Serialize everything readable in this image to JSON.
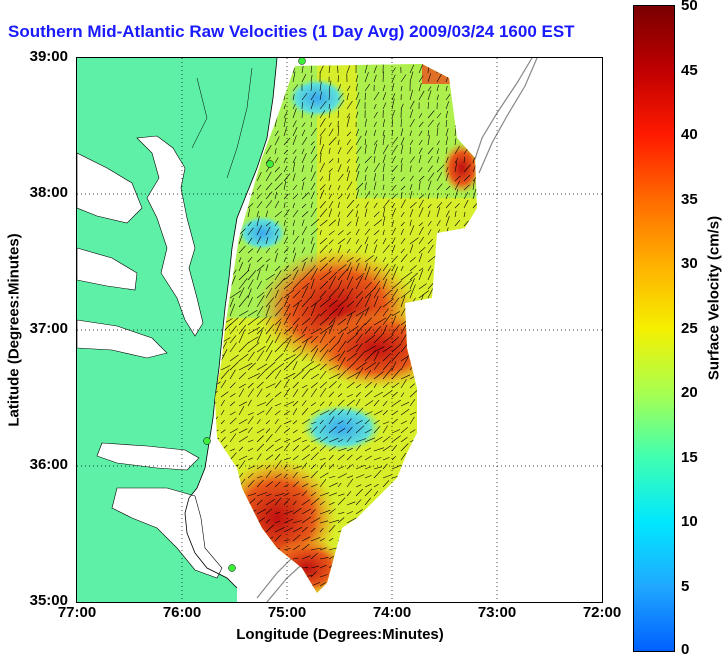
{
  "title": "Southern Mid-Atlantic Raw Velocities (1 Day Avg) 2009/03/24 1600 EST",
  "axes": {
    "xlabel": "Longitude (Degrees:Minutes)",
    "ylabel": "Latitude (Degrees:Minutes)",
    "x_ticks": [
      "77:00",
      "76:00",
      "75:00",
      "74:00",
      "73:00",
      "72:00"
    ],
    "y_ticks": [
      "39:00",
      "38:00",
      "37:00",
      "36:00",
      "35:00"
    ]
  },
  "colorbar": {
    "label": "Surface Velocity (cm/s)",
    "ticks": [
      "50",
      "45",
      "40",
      "35",
      "30",
      "25",
      "20",
      "15",
      "10",
      "5",
      "0"
    ],
    "range": [
      0,
      50
    ]
  },
  "colors": {
    "title": "#1a1aff",
    "land": "#5ef0a6",
    "water": "#ffffff",
    "shelf_lines": "#888888"
  },
  "chart_data": {
    "type": "heatmap",
    "x_range_deg_west": [
      77,
      72
    ],
    "y_range_deg_north": [
      35,
      39
    ],
    "value_units": "cm/s",
    "value_range": [
      0,
      50
    ],
    "grid": "dotted",
    "legend": "colorbar right",
    "station_markers": 4
  }
}
